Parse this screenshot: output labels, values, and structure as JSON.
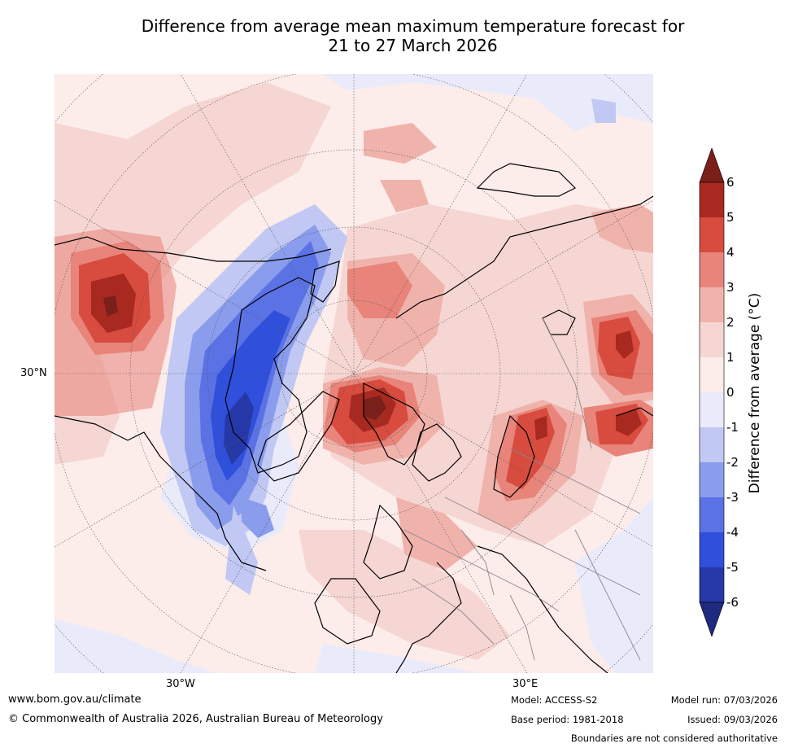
{
  "title_line1": "Difference from average mean maximum temperature forecast for",
  "title_line2": "21 to 27 March 2026",
  "map": {
    "projection": "north-polar-stereographic",
    "lat_label": "30°N",
    "lon_labels": [
      "30°W",
      "30°E"
    ]
  },
  "colorbar": {
    "label": "Difference from average ($^\\circ$C)",
    "label_text": "Difference from average (°C)",
    "ticks": [
      "6",
      "5",
      "4",
      "3",
      "2",
      "1",
      "0",
      "-1",
      "-2",
      "-3",
      "-4",
      "-5",
      "-6"
    ],
    "bins": [
      {
        "range": "> 6",
        "color": "#7a1f1a"
      },
      {
        "range": "5 to 6",
        "color": "#a8291f"
      },
      {
        "range": "4 to 5",
        "color": "#d84b3f"
      },
      {
        "range": "3 to 4",
        "color": "#e8847a"
      },
      {
        "range": "2 to 3",
        "color": "#f0b3ac"
      },
      {
        "range": "1 to 2",
        "color": "#f6d6d2"
      },
      {
        "range": "0 to 1",
        "color": "#fcecea"
      },
      {
        "range": "-1 to 0",
        "color": "#e9ebfb"
      },
      {
        "range": "-2 to -1",
        "color": "#c0c8f3"
      },
      {
        "range": "-3 to -2",
        "color": "#8a9cec"
      },
      {
        "range": "-4 to -3",
        "color": "#5a72e4"
      },
      {
        "range": "-5 to -4",
        "color": "#304fdb"
      },
      {
        "range": "-6 to -5",
        "color": "#2638a8"
      },
      {
        "range": "< -6",
        "color": "#1e2a80"
      }
    ]
  },
  "footer": {
    "url": "www.bom.gov.au/climate",
    "copyright": "© Commonwealth of Australia 2026, Australian Bureau of Meteorology",
    "model": "Model: ACCESS-S2",
    "base_period": "Base period: 1981-2018",
    "model_run": "Model run: 07/03/2026",
    "issued": "Issued: 09/03/2026",
    "disclaimer": "Boundaries are not considered authoritative"
  }
}
